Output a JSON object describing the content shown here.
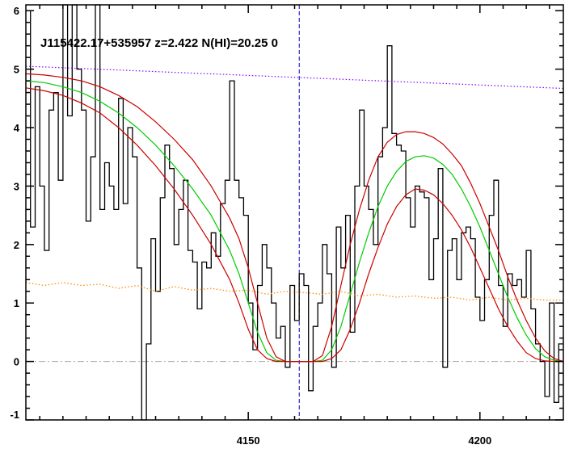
{
  "chart_data": {
    "type": "line",
    "title": "J115422.17+535957 z=2.422 N(HI)=20.25 0",
    "xlabel": "",
    "ylabel": "",
    "xlim": [
      4102,
      4218
    ],
    "ylim": [
      -1,
      6.1
    ],
    "grid": false,
    "x_ticks": [
      4150,
      4200
    ],
    "y_ticks": [
      -1,
      0,
      1,
      2,
      3,
      4,
      5,
      6
    ],
    "vertical_marker_x": 4161,
    "zero_line_y": 0,
    "colors": {
      "flux": "#000000",
      "model": "#00cc00",
      "model_bounds": "#cc0000",
      "continuum": "#8800ff",
      "error": "#ff8800",
      "marker": "#0000bb",
      "zero_line": "#aaaaaa"
    },
    "series": [
      {
        "style": "step",
        "role": "flux",
        "x": [
          4102,
          4103,
          4104,
          4105,
          4106,
          4107,
          4108,
          4109,
          4110,
          4111,
          4112,
          4113,
          4114,
          4115,
          4116,
          4117,
          4118,
          4119,
          4120,
          4121,
          4122,
          4123,
          4124,
          4125,
          4126,
          4127,
          4128,
          4129,
          4130,
          4131,
          4132,
          4133,
          4134,
          4135,
          4136,
          4137,
          4138,
          4139,
          4140,
          4141,
          4142,
          4143,
          4144,
          4145,
          4146,
          4147,
          4148,
          4149,
          4150,
          4151,
          4152,
          4153,
          4154,
          4155,
          4156,
          4157,
          4158,
          4159,
          4160,
          4161,
          4162,
          4163,
          4164,
          4165,
          4166,
          4167,
          4168,
          4169,
          4170,
          4171,
          4172,
          4173,
          4174,
          4175,
          4176,
          4177,
          4178,
          4179,
          4180,
          4181,
          4182,
          4183,
          4184,
          4185,
          4186,
          4187,
          4188,
          4189,
          4190,
          4191,
          4192,
          4193,
          4194,
          4195,
          4196,
          4197,
          4198,
          4199,
          4200,
          4201,
          4202,
          4203,
          4204,
          4205,
          4206,
          4207,
          4208,
          4209,
          4210,
          4211,
          4212,
          4213,
          4214,
          4215,
          4216,
          4217
        ],
        "y": [
          6.0,
          2.3,
          4.7,
          3.0,
          1.9,
          4.3,
          4.6,
          3.1,
          6.1,
          4.2,
          6.1,
          5.0,
          4.3,
          2.4,
          3.5,
          6.1,
          2.6,
          3.4,
          3.0,
          2.6,
          4.5,
          2.7,
          4.0,
          3.5,
          1.6,
          -1.1,
          0.3,
          2.1,
          1.2,
          2.8,
          3.7,
          3.3,
          2.0,
          2.6,
          3.1,
          1.9,
          1.7,
          0.9,
          1.7,
          1.6,
          2.2,
          1.8,
          2.7,
          3.1,
          4.8,
          3.1,
          2.8,
          2.5,
          1.0,
          0.2,
          1.3,
          2.0,
          1.6,
          1.0,
          0.4,
          0.6,
          -0.1,
          1.3,
          0.7,
          1.5,
          1.3,
          -0.5,
          0.6,
          1.0,
          2.0,
          1.5,
          -0.1,
          2.3,
          1.6,
          2.5,
          0.5,
          3.0,
          4.3,
          3.0,
          2.6,
          2.0,
          3.5,
          4.0,
          5.4,
          3.9,
          3.7,
          3.6,
          2.8,
          2.3,
          3.0,
          2.9,
          2.8,
          1.4,
          2.1,
          3.3,
          -0.1,
          1.9,
          2.1,
          1.4,
          2.2,
          2.3,
          2.1,
          1.1,
          0.7,
          1.4,
          2.5,
          3.1,
          1.3,
          0.6,
          1.5,
          1.3,
          1.4,
          1.1,
          1.9,
          0.9,
          0.3,
          0.0,
          -0.6,
          1.0,
          -0.7,
          0.3
        ]
      },
      {
        "style": "smooth",
        "role": "model",
        "x": [
          4102,
          4106,
          4110,
          4114,
          4118,
          4122,
          4126,
          4130,
          4134,
          4138,
          4142,
          4146,
          4148,
          4150,
          4152,
          4154,
          4156,
          4158,
          4160,
          4162,
          4164,
          4166,
          4168,
          4170,
          4172,
          4174,
          4176,
          4178,
          4180,
          4182,
          4184,
          4186,
          4188,
          4190,
          4192,
          4194,
          4196,
          4198,
          4200,
          4202,
          4204,
          4206,
          4208,
          4210,
          4212,
          4214,
          4216,
          4218
        ],
        "y": [
          4.8,
          4.77,
          4.7,
          4.6,
          4.45,
          4.25,
          4.0,
          3.7,
          3.35,
          2.95,
          2.5,
          1.9,
          1.5,
          1.0,
          0.5,
          0.15,
          0.02,
          0.0,
          0.0,
          0.0,
          0.0,
          0.02,
          0.2,
          0.6,
          1.15,
          1.7,
          2.2,
          2.65,
          3.0,
          3.25,
          3.42,
          3.5,
          3.52,
          3.48,
          3.37,
          3.2,
          2.95,
          2.65,
          2.3,
          1.9,
          1.5,
          1.1,
          0.75,
          0.45,
          0.22,
          0.08,
          0.02,
          0.0
        ]
      },
      {
        "style": "smooth",
        "role": "model-upper",
        "x": [
          4102,
          4106,
          4110,
          4114,
          4118,
          4122,
          4126,
          4130,
          4134,
          4138,
          4142,
          4146,
          4148,
          4150,
          4152,
          4154,
          4156,
          4158,
          4160,
          4162,
          4164,
          4166,
          4168,
          4170,
          4172,
          4174,
          4176,
          4178,
          4180,
          4182,
          4184,
          4186,
          4188,
          4190,
          4192,
          4194,
          4196,
          4198,
          4200,
          4202,
          4204,
          4206,
          4208,
          4210,
          4212,
          4214,
          4216,
          4218
        ],
        "y": [
          4.92,
          4.9,
          4.86,
          4.8,
          4.7,
          4.55,
          4.36,
          4.1,
          3.8,
          3.45,
          3.0,
          2.45,
          2.1,
          1.6,
          1.0,
          0.4,
          0.08,
          0.0,
          0.0,
          0.0,
          0.0,
          0.1,
          0.6,
          1.3,
          2.0,
          2.6,
          3.1,
          3.5,
          3.75,
          3.88,
          3.93,
          3.93,
          3.9,
          3.83,
          3.72,
          3.55,
          3.35,
          3.05,
          2.7,
          2.3,
          1.9,
          1.45,
          1.05,
          0.7,
          0.4,
          0.18,
          0.05,
          0.0
        ]
      },
      {
        "style": "smooth",
        "role": "model-lower",
        "x": [
          4102,
          4106,
          4110,
          4114,
          4118,
          4122,
          4126,
          4130,
          4134,
          4138,
          4142,
          4146,
          4148,
          4150,
          4152,
          4154,
          4156,
          4158,
          4160,
          4162,
          4164,
          4166,
          4168,
          4170,
          4172,
          4174,
          4176,
          4178,
          4180,
          4182,
          4184,
          4186,
          4188,
          4190,
          4192,
          4194,
          4196,
          4198,
          4200,
          4202,
          4204,
          4206,
          4208,
          4210,
          4212,
          4214,
          4216,
          4218
        ],
        "y": [
          4.68,
          4.63,
          4.55,
          4.42,
          4.25,
          4.0,
          3.7,
          3.35,
          2.95,
          2.5,
          2.0,
          1.4,
          1.0,
          0.55,
          0.2,
          0.05,
          0.0,
          0.0,
          0.0,
          0.0,
          0.0,
          0.0,
          0.05,
          0.2,
          0.55,
          1.0,
          1.5,
          1.95,
          2.35,
          2.65,
          2.85,
          2.95,
          2.93,
          2.85,
          2.7,
          2.5,
          2.25,
          1.95,
          1.6,
          1.25,
          0.9,
          0.6,
          0.35,
          0.15,
          0.05,
          0.01,
          0.0,
          0.0
        ]
      },
      {
        "style": "dotted",
        "role": "continuum",
        "x": [
          4102,
          4218
        ],
        "y": [
          5.05,
          4.67
        ]
      },
      {
        "style": "dotted",
        "role": "error",
        "x": [
          4102,
          4106,
          4110,
          4114,
          4118,
          4122,
          4126,
          4130,
          4134,
          4138,
          4142,
          4146,
          4150,
          4154,
          4158,
          4162,
          4166,
          4170,
          4174,
          4178,
          4182,
          4186,
          4190,
          4194,
          4198,
          4202,
          4206,
          4210,
          4214,
          4218
        ],
        "y": [
          1.35,
          1.3,
          1.35,
          1.3,
          1.32,
          1.25,
          1.3,
          1.2,
          1.28,
          1.22,
          1.25,
          1.2,
          1.22,
          1.15,
          1.2,
          1.18,
          1.15,
          1.2,
          1.12,
          1.15,
          1.1,
          1.12,
          1.08,
          1.1,
          1.05,
          1.1,
          1.05,
          1.08,
          1.05,
          1.05
        ]
      }
    ]
  }
}
